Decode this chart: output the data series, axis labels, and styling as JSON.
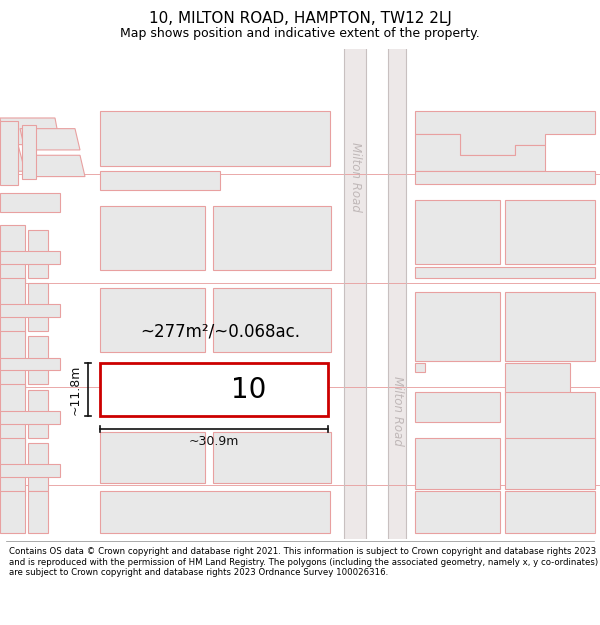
{
  "title": "10, MILTON ROAD, HAMPTON, TW12 2LJ",
  "subtitle": "Map shows position and indicative extent of the property.",
  "footer": "Contains OS data © Crown copyright and database right 2021. This information is subject to Crown copyright and database rights 2023 and is reproduced with the permission of HM Land Registry. The polygons (including the associated geometry, namely x, y co-ordinates) are subject to Crown copyright and database rights 2023 Ordnance Survey 100026316.",
  "map_bg": "#f7f3f3",
  "road_strip_color": "#e0d8d8",
  "building_fill": "#e8e8e8",
  "building_edge": "#e8a0a0",
  "highlight_fill": "#ffffff",
  "highlight_edge": "#cc0000",
  "road_label_color": "#c0b8b8",
  "dim_color": "#111111",
  "area_text": "~277m²/~0.068ac.",
  "label_number": "10",
  "dim_width": "~30.9m",
  "dim_height": "~11.8m",
  "milton_road_label": "Milton Road",
  "figsize": [
    6.0,
    6.25
  ],
  "dpi": 100,
  "title_fontsize": 11,
  "subtitle_fontsize": 9,
  "footer_fontsize": 6.2
}
